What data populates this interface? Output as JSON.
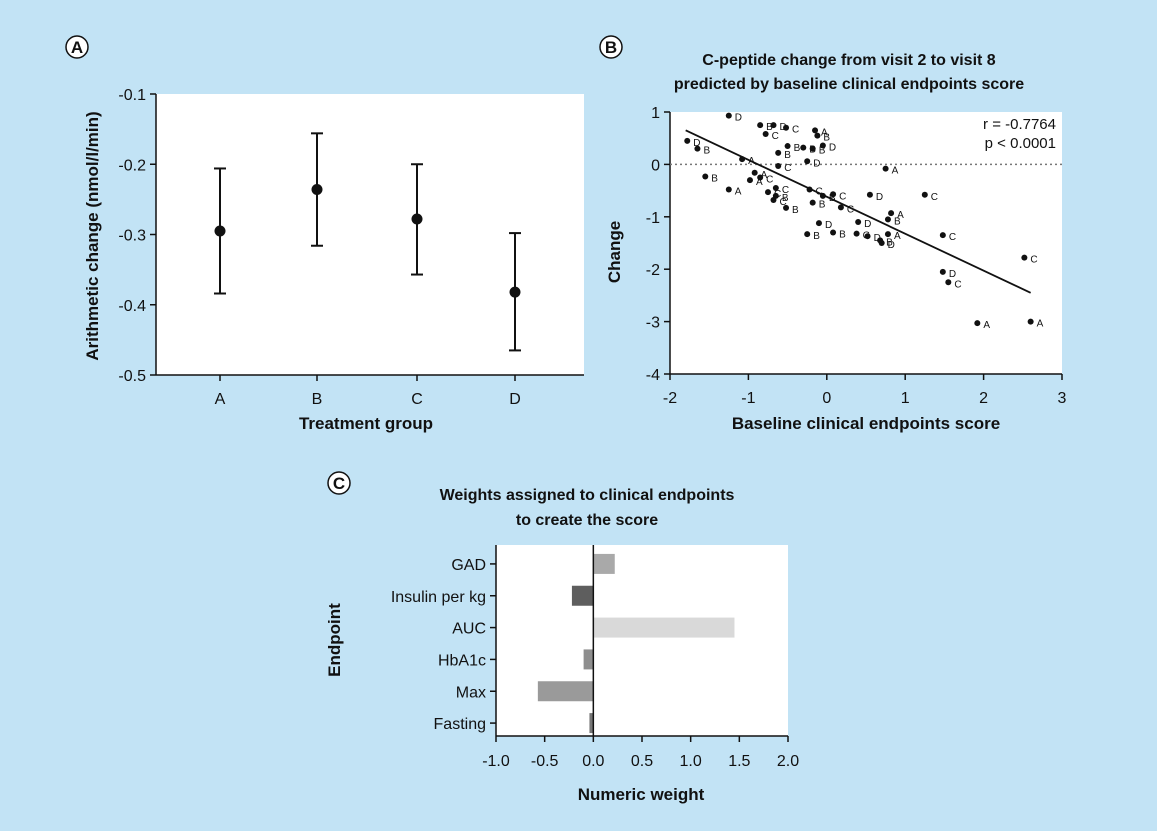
{
  "panel_labels": [
    "A",
    "B",
    "C"
  ],
  "chart_data": [
    {
      "type": "errorbar",
      "xlabel": "Treatment group",
      "ylabel": "Arithmetic change (nmol/l/min)",
      "categories": [
        "A",
        "B",
        "C",
        "D"
      ],
      "values": [
        -0.295,
        -0.236,
        -0.278,
        -0.382
      ],
      "lower": [
        -0.384,
        -0.316,
        -0.357,
        -0.465
      ],
      "upper": [
        -0.206,
        -0.156,
        -0.2,
        -0.298
      ],
      "ylim": [
        -0.5,
        -0.1
      ],
      "yticks": [
        "-0.1",
        "-0.2",
        "-0.3",
        "-0.4",
        "-0.5"
      ],
      "grid": false
    },
    {
      "type": "scatter",
      "title": "C-peptide change from visit 2 to visit 8 predicted by baseline clinical endpoints score",
      "title_lines": [
        "C-peptide change from visit 2 to visit 8",
        "predicted by baseline clinical endpoints score"
      ],
      "xlabel": "Baseline clinical endpoints score",
      "ylabel": "Change",
      "xlim": [
        -2,
        3
      ],
      "ylim": [
        -4,
        1
      ],
      "xticks": [
        "-2",
        "-1",
        "0",
        "1",
        "2",
        "3"
      ],
      "yticks": [
        "1",
        "0",
        "-1",
        "-2",
        "-3",
        "-4"
      ],
      "annotations": [
        "r = -0.7764",
        "p < 0.0001"
      ],
      "reference_line": 0,
      "regression": {
        "x": [
          -1.8,
          2.6
        ],
        "y": [
          0.65,
          -2.45
        ]
      },
      "points": [
        {
          "x": -1.25,
          "y": 0.93,
          "g": "D"
        },
        {
          "x": -0.85,
          "y": 0.75,
          "g": "B"
        },
        {
          "x": -0.68,
          "y": 0.75,
          "g": "D"
        },
        {
          "x": -0.52,
          "y": 0.7,
          "g": "C"
        },
        {
          "x": -0.78,
          "y": 0.58,
          "g": "C"
        },
        {
          "x": -0.15,
          "y": 0.65,
          "g": "A"
        },
        {
          "x": -0.12,
          "y": 0.55,
          "g": "B"
        },
        {
          "x": -0.5,
          "y": 0.35,
          "g": "B"
        },
        {
          "x": -0.3,
          "y": 0.32,
          "g": "B"
        },
        {
          "x": -0.18,
          "y": 0.3,
          "g": "B"
        },
        {
          "x": -0.05,
          "y": 0.36,
          "g": "D"
        },
        {
          "x": -0.62,
          "y": 0.22,
          "g": "B"
        },
        {
          "x": -0.25,
          "y": 0.06,
          "g": "D"
        },
        {
          "x": -0.62,
          "y": -0.03,
          "g": "C"
        },
        {
          "x": -1.78,
          "y": 0.45,
          "g": "D"
        },
        {
          "x": -1.65,
          "y": 0.3,
          "g": "B"
        },
        {
          "x": -1.08,
          "y": 0.1,
          "g": "A"
        },
        {
          "x": -0.92,
          "y": -0.16,
          "g": "A"
        },
        {
          "x": -0.98,
          "y": -0.3,
          "g": "A"
        },
        {
          "x": -0.85,
          "y": -0.25,
          "g": "C"
        },
        {
          "x": -1.55,
          "y": -0.23,
          "g": "B"
        },
        {
          "x": -1.25,
          "y": -0.48,
          "g": "A"
        },
        {
          "x": -0.65,
          "y": -0.45,
          "g": "C"
        },
        {
          "x": -0.75,
          "y": -0.53,
          "g": "C"
        },
        {
          "x": -0.65,
          "y": -0.6,
          "g": "B"
        },
        {
          "x": -0.68,
          "y": -0.68,
          "g": "C"
        },
        {
          "x": -0.52,
          "y": -0.83,
          "g": "B"
        },
        {
          "x": -0.22,
          "y": -0.48,
          "g": "C"
        },
        {
          "x": -0.05,
          "y": -0.6,
          "g": "B"
        },
        {
          "x": 0.08,
          "y": -0.57,
          "g": "C"
        },
        {
          "x": -0.18,
          "y": -0.73,
          "g": "B"
        },
        {
          "x": 0.18,
          "y": -0.82,
          "g": "C"
        },
        {
          "x": 0.55,
          "y": -0.58,
          "g": "D"
        },
        {
          "x": 0.75,
          "y": -0.08,
          "g": "A"
        },
        {
          "x": 1.25,
          "y": -0.58,
          "g": "C"
        },
        {
          "x": 0.82,
          "y": -0.93,
          "g": "A"
        },
        {
          "x": 0.78,
          "y": -1.05,
          "g": "B"
        },
        {
          "x": -0.1,
          "y": -1.12,
          "g": "D"
        },
        {
          "x": 0.4,
          "y": -1.1,
          "g": "D"
        },
        {
          "x": -0.25,
          "y": -1.33,
          "g": "B"
        },
        {
          "x": 0.08,
          "y": -1.3,
          "g": "B"
        },
        {
          "x": 0.38,
          "y": -1.32,
          "g": "C"
        },
        {
          "x": 0.52,
          "y": -1.37,
          "g": "D"
        },
        {
          "x": 0.68,
          "y": -1.45,
          "g": "B"
        },
        {
          "x": 0.7,
          "y": -1.5,
          "g": "D"
        },
        {
          "x": 0.78,
          "y": -1.33,
          "g": "A"
        },
        {
          "x": 1.48,
          "y": -1.35,
          "g": "C"
        },
        {
          "x": 2.52,
          "y": -1.78,
          "g": "C"
        },
        {
          "x": 1.48,
          "y": -2.05,
          "g": "D"
        },
        {
          "x": 1.55,
          "y": -2.25,
          "g": "C"
        },
        {
          "x": 1.92,
          "y": -3.03,
          "g": "A"
        },
        {
          "x": 2.6,
          "y": -3.0,
          "g": "A"
        }
      ],
      "grid": false
    },
    {
      "type": "bar",
      "orientation": "horizontal",
      "title": "Weights assigned to clinical endpoints to create the score",
      "title_lines": [
        "Weights assigned to clinical endpoints",
        "to create the score"
      ],
      "xlabel": "Numeric weight",
      "ylabel": "Endpoint",
      "categories": [
        "GAD",
        "Insulin per kg",
        "AUC",
        "HbA1c",
        "Max",
        "Fasting"
      ],
      "values": [
        0.22,
        -0.22,
        1.45,
        -0.1,
        -0.57,
        -0.04
      ],
      "colors": [
        "#a9a9a9",
        "#5e5e5e",
        "#d9d9d9",
        "#8e8e8e",
        "#9a9a9a",
        "#777777"
      ],
      "xlim": [
        -1.0,
        2.0
      ],
      "xticks": [
        "-1.0",
        "-0.5",
        "0.0",
        "0.5",
        "1.0",
        "1.5",
        "2.0"
      ],
      "grid": false
    }
  ]
}
